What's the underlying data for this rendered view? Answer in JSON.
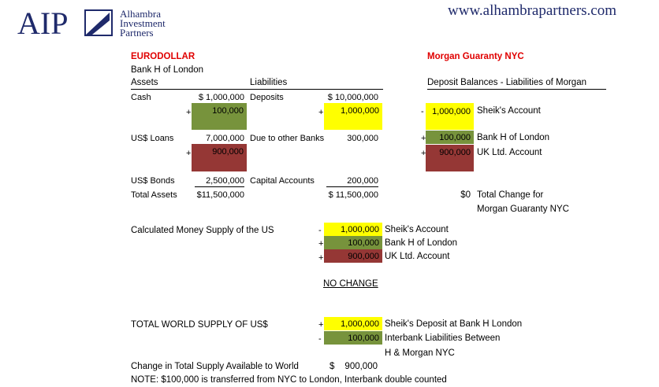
{
  "header": {
    "logo_letters": "AIP",
    "logo_line1": "Alhambra",
    "logo_line2": "Investment",
    "logo_line3": "Partners",
    "website": "www.alhambrapartners.com"
  },
  "left_panel": {
    "title": "EURODOLLAR",
    "bank_name": "Bank H of London",
    "assets_header": "Assets",
    "liabilities_header": "Liabilities",
    "cash_label": "Cash",
    "cash_value": "$  1,000,000",
    "cash_add_sign": "+",
    "cash_add_value": "100,000",
    "deposits_label": "Deposits",
    "deposits_value": "$ 10,000,000",
    "deposits_add_sign": "+",
    "deposits_add_value": "1,000,000",
    "loans_label": "US$ Loans",
    "loans_value": "7,000,000",
    "loans_add_sign": "+",
    "loans_add_value": "900,000",
    "due_label": "Due to other Banks",
    "due_value": "300,000",
    "bonds_label": "US$ Bonds",
    "bonds_value": "2,500,000",
    "capital_label": "Capital Accounts",
    "capital_value": "200,000",
    "total_assets_label": "Total Assets",
    "total_assets_value": "$11,500,000",
    "total_liab_value": "$ 11,500,000"
  },
  "right_panel": {
    "title": "Morgan Guaranty NYC",
    "header": "Deposit Balances - Liabilities of Morgan",
    "rows": [
      {
        "sign": "-",
        "value": "1,000,000",
        "label": "Sheik's Account"
      },
      {
        "sign": "+",
        "value": "100,000",
        "label": "Bank H of London"
      },
      {
        "sign": "+",
        "value": "900,000",
        "label": "UK Ltd. Account"
      }
    ],
    "total_value": "$0",
    "total_label_1": "Total Change for",
    "total_label_2": "Morgan Guaranty NYC"
  },
  "money_supply": {
    "label": "Calculated Money Supply of the US",
    "rows": [
      {
        "sign": "-",
        "value": "1,000,000",
        "label": "Sheik's Account"
      },
      {
        "sign": "+",
        "value": "100,000",
        "label": "Bank H of London"
      },
      {
        "sign": "+",
        "value": "900,000",
        "label": "UK Ltd. Account"
      }
    ],
    "result": "NO CHANGE"
  },
  "world_supply": {
    "label": "TOTAL WORLD SUPPLY OF US$",
    "rows": [
      {
        "sign": "+",
        "value": "1,000,000",
        "label": "Sheik's Deposit at Bank H London"
      },
      {
        "sign": "-",
        "value": "100,000",
        "label": "Interbank Liabilities Between"
      }
    ],
    "label_cont": "H & Morgan NYC",
    "change_label": "Change in Total Supply Available to World",
    "change_currency": "$",
    "change_value": "900,000",
    "note": "NOTE:  $100,000 is transferred from NYC to London, Interbank double counted"
  },
  "colors": {
    "yellow": "#ffff00",
    "green": "#77933c",
    "maroon": "#953735",
    "red_title": "#e00000",
    "logo_blue": "#1f2a6b"
  }
}
